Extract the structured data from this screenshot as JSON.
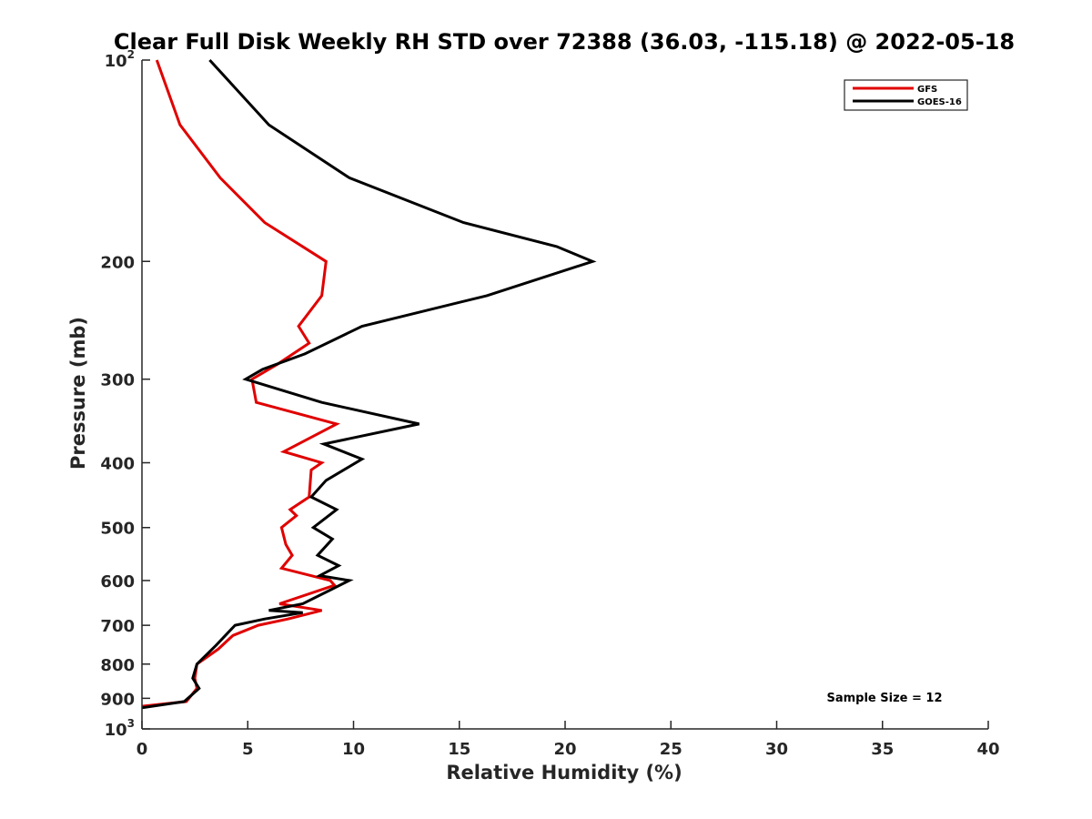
{
  "chart_data": {
    "type": "line",
    "title": "Clear Full Disk Weekly RH STD over 72388 (36.03, -115.18) @ 2022-05-18",
    "xlabel": "Relative Humidity (%)",
    "ylabel": "Pressure (mb)",
    "xlim": [
      0,
      40
    ],
    "ylim": [
      100,
      1000
    ],
    "y_scale": "log",
    "y_reversed": true,
    "grid": false,
    "legend_position": "top-right",
    "x_ticks": [
      0,
      5,
      10,
      15,
      20,
      25,
      30,
      35,
      40
    ],
    "y_ticks": [
      {
        "value": 100,
        "base": "10",
        "exp": "2"
      },
      {
        "value": 200,
        "label": "200"
      },
      {
        "value": 300,
        "label": "300"
      },
      {
        "value": 400,
        "label": "400"
      },
      {
        "value": 500,
        "label": "500"
      },
      {
        "value": 600,
        "label": "600"
      },
      {
        "value": 700,
        "label": "700"
      },
      {
        "value": 800,
        "label": "800"
      },
      {
        "value": 900,
        "label": "900"
      },
      {
        "value": 1000,
        "base": "10",
        "exp": "3"
      }
    ],
    "series": [
      {
        "name": "GFS",
        "color": "#e00000",
        "points": [
          [
            0.7,
            100
          ],
          [
            1.8,
            125
          ],
          [
            3.7,
            150
          ],
          [
            5.8,
            175
          ],
          [
            8.7,
            200
          ],
          [
            8.5,
            225
          ],
          [
            7.4,
            250
          ],
          [
            7.9,
            265
          ],
          [
            6.4,
            285
          ],
          [
            5.2,
            300
          ],
          [
            5.4,
            325
          ],
          [
            9.2,
            350
          ],
          [
            6.7,
            385
          ],
          [
            8.5,
            400
          ],
          [
            8.0,
            410
          ],
          [
            7.9,
            450
          ],
          [
            7.0,
            470
          ],
          [
            7.3,
            480
          ],
          [
            6.6,
            500
          ],
          [
            6.8,
            530
          ],
          [
            7.1,
            550
          ],
          [
            6.6,
            575
          ],
          [
            8.9,
            600
          ],
          [
            9.1,
            610
          ],
          [
            6.5,
            650
          ],
          [
            8.5,
            665
          ],
          [
            6.9,
            685
          ],
          [
            5.5,
            700
          ],
          [
            4.3,
            725
          ],
          [
            3.6,
            760
          ],
          [
            2.6,
            800
          ],
          [
            2.5,
            840
          ],
          [
            2.6,
            870
          ],
          [
            2.1,
            910
          ],
          [
            0,
            925
          ]
        ]
      },
      {
        "name": "GOES-16",
        "color": "#000000",
        "points": [
          [
            3.2,
            100
          ],
          [
            6.0,
            125
          ],
          [
            9.8,
            150
          ],
          [
            15.2,
            175
          ],
          [
            19.6,
            190
          ],
          [
            21.3,
            200
          ],
          [
            16.3,
            225
          ],
          [
            10.4,
            250
          ],
          [
            7.7,
            275
          ],
          [
            5.7,
            290
          ],
          [
            4.9,
            300
          ],
          [
            8.5,
            325
          ],
          [
            13.1,
            350
          ],
          [
            8.6,
            375
          ],
          [
            10.4,
            395
          ],
          [
            8.7,
            425
          ],
          [
            8.0,
            450
          ],
          [
            9.2,
            470
          ],
          [
            8.1,
            500
          ],
          [
            9.0,
            520
          ],
          [
            8.3,
            550
          ],
          [
            9.3,
            570
          ],
          [
            8.4,
            590
          ],
          [
            9.8,
            600
          ],
          [
            8.9,
            620
          ],
          [
            7.6,
            650
          ],
          [
            6.0,
            665
          ],
          [
            7.6,
            670
          ],
          [
            5.8,
            685
          ],
          [
            4.4,
            700
          ],
          [
            3.5,
            750
          ],
          [
            2.6,
            800
          ],
          [
            2.4,
            840
          ],
          [
            2.7,
            870
          ],
          [
            2.0,
            910
          ],
          [
            0,
            930
          ]
        ]
      }
    ],
    "annotation": "Sample Size = 12"
  }
}
